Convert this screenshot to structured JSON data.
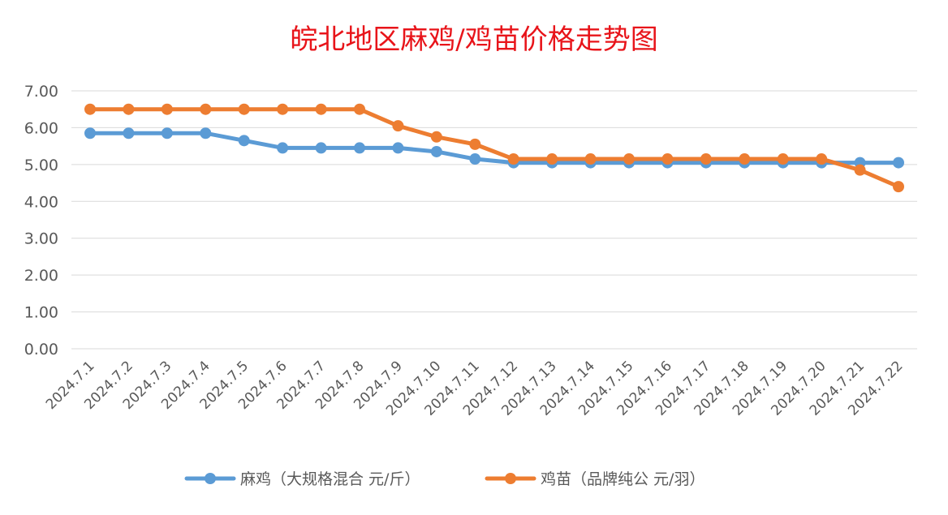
{
  "chart_data": {
    "type": "line",
    "title": "皖北地区麻鸡/鸡苗价格走势图",
    "title_color": "#E8141A",
    "categories": [
      "2024.7.1",
      "2024.7.2",
      "2024.7.3",
      "2024.7.4",
      "2024.7.5",
      "2024.7.6",
      "2024.7.7",
      "2024.7.8",
      "2024.7.9",
      "2024.7.10",
      "2024.7.11",
      "2024.7.12",
      "2024.7.13",
      "2024.7.14",
      "2024.7.15",
      "2024.7.16",
      "2024.7.17",
      "2024.7.18",
      "2024.7.19",
      "2024.7.20",
      "2024.7.21",
      "2024.7.22"
    ],
    "ylim": [
      0,
      7
    ],
    "yticks": [
      "0.00",
      "1.00",
      "2.00",
      "3.00",
      "4.00",
      "5.00",
      "6.00",
      "7.00"
    ],
    "grid": true,
    "legend_position": "bottom",
    "series": [
      {
        "name": "麻鸡（大规格混合 元/斤）",
        "color": "#5B9BD5",
        "values": [
          5.85,
          5.85,
          5.85,
          5.85,
          5.65,
          5.45,
          5.45,
          5.45,
          5.45,
          5.35,
          5.15,
          5.05,
          5.05,
          5.05,
          5.05,
          5.05,
          5.05,
          5.05,
          5.05,
          5.05,
          5.05,
          5.05
        ]
      },
      {
        "name": "鸡苗（品牌纯公 元/羽）",
        "color": "#ED7D31",
        "values": [
          6.5,
          6.5,
          6.5,
          6.5,
          6.5,
          6.5,
          6.5,
          6.5,
          6.05,
          5.75,
          5.55,
          5.15,
          5.15,
          5.15,
          5.15,
          5.15,
          5.15,
          5.15,
          5.15,
          5.15,
          4.85,
          4.4
        ]
      }
    ]
  }
}
